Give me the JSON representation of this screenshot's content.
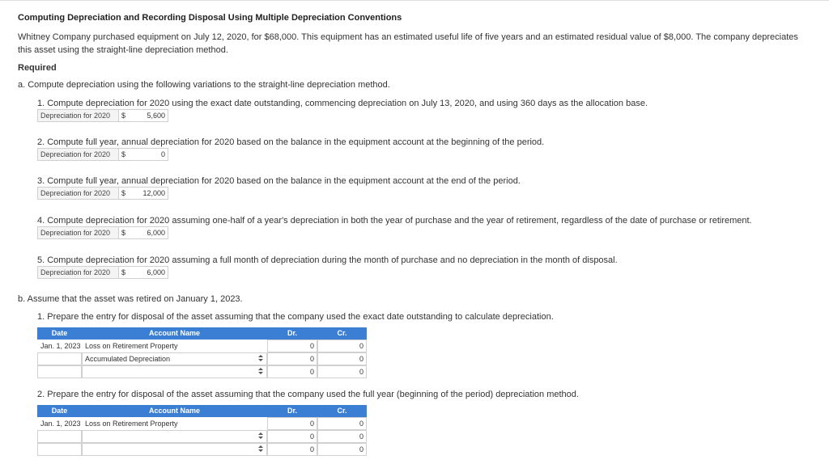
{
  "title": "Computing Depreciation and Recording Disposal Using Multiple Depreciation Conventions",
  "intro": "Whitney Company purchased equipment on July 12, 2020, for $68,000. This equipment has an estimated useful life of five years and an estimated residual value of $8,000. The company depreciates this asset using the straight-line depreciation method.",
  "required": "Required",
  "part_a": {
    "heading": "a. Compute depreciation using the following variations to the straight-line depreciation method.",
    "items": [
      {
        "text": "1. Compute depreciation for 2020 using the exact date outstanding, commencing depreciation on July 13, 2020, and using 360 days as the allocation base.",
        "label": "Depreciation for 2020",
        "currency": "$",
        "answer": "5,600"
      },
      {
        "text": "2. Compute full year, annual depreciation for 2020 based on the balance in the equipment account at the beginning of the period.",
        "label": "Depreciation for 2020",
        "currency": "$",
        "answer": "0"
      },
      {
        "text": "3. Compute full year, annual depreciation for 2020 based on the balance in the equipment account at the end of the period.",
        "label": "Depreciation for 2020",
        "currency": "$",
        "answer": "12,000"
      },
      {
        "text": "4. Compute depreciation for 2020 assuming one-half of a year's depreciation in both the year of purchase and the year of retirement, regardless of the date of purchase or retirement.",
        "label": "Depreciation for 2020",
        "currency": "$",
        "answer": "6,000"
      },
      {
        "text": "5. Compute depreciation for 2020 assuming a full month of depreciation during the month of purchase and no depreciation in the month of disposal.",
        "label": "Depreciation for 2020",
        "currency": "$",
        "answer": "6,000"
      }
    ]
  },
  "part_b": {
    "heading": "b. Assume that the asset was retired on January 1, 2023.",
    "entries": [
      {
        "text": "1. Prepare the entry for disposal of the asset assuming that the company used the exact date outstanding to calculate depreciation.",
        "columns": [
          "Date",
          "Account Name",
          "Dr.",
          "Cr."
        ],
        "rows": [
          {
            "date": "Jan. 1, 2023",
            "account": "Loss on Retirement Property",
            "dr": "0",
            "cr": "0"
          },
          {
            "account": "Accumulated Depreciation",
            "dr": "0",
            "cr": "0"
          },
          {
            "dr": "0",
            "cr": "0"
          }
        ]
      },
      {
        "text": "2. Prepare the entry for disposal of the asset assuming that the company used the full year (beginning of the period) depreciation method.",
        "columns": [
          "Date",
          "Account Name",
          "Dr.",
          "Cr."
        ],
        "rows": [
          {
            "date": "Jan. 1, 2023",
            "account": "Loss on Retirement Property",
            "dr": "0",
            "cr": "0"
          },
          {
            "dr": "0",
            "cr": "0"
          },
          {
            "dr": "0",
            "cr": "0"
          }
        ]
      }
    ]
  }
}
